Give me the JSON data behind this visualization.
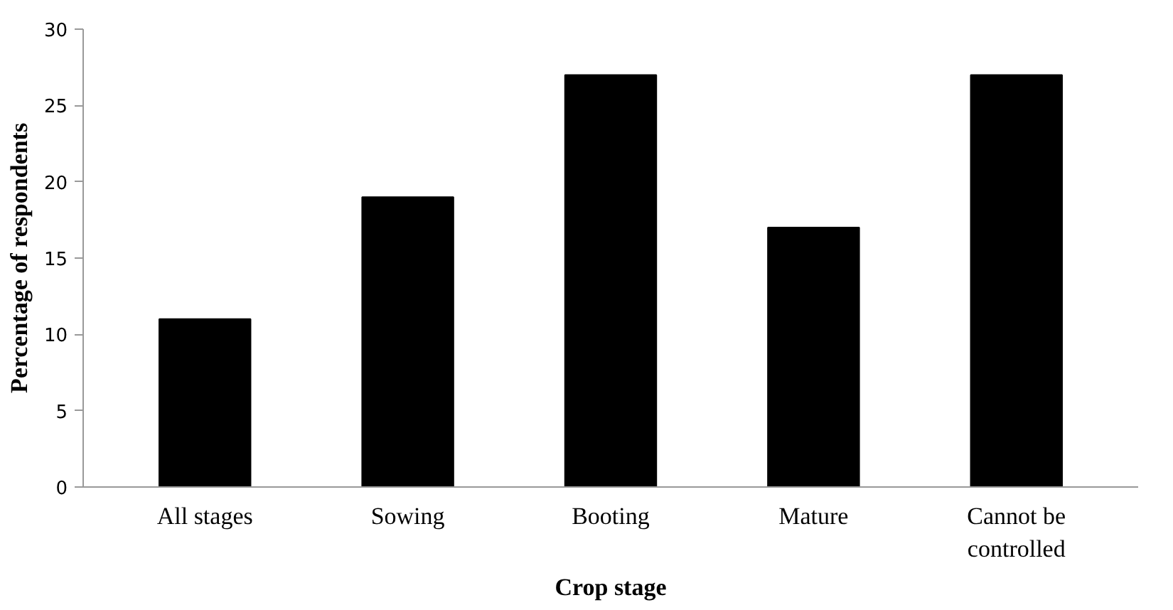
{
  "chart_data": {
    "type": "bar",
    "xlabel": "Crop stage",
    "ylabel": "Percentage of respondents",
    "categories": [
      "All stages",
      "Sowing",
      "Booting",
      "Mature",
      "Cannot be controlled"
    ],
    "values": [
      11,
      19,
      27,
      17,
      27
    ],
    "color": "#000000",
    "ylim": [
      0,
      30
    ],
    "yticks": [
      0,
      5,
      10,
      15,
      20,
      25,
      30
    ],
    "grid": false
  }
}
